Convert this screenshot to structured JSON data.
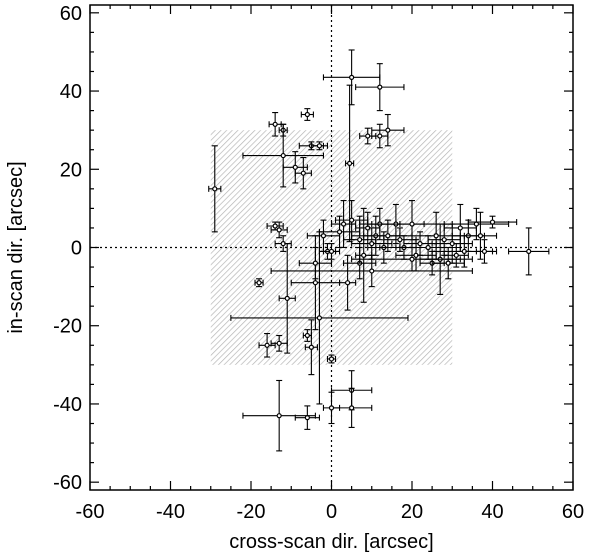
{
  "chart_data": {
    "type": "scatter",
    "title": "",
    "xlabel": "cross-scan dir. [arcsec]",
    "ylabel": "in-scan dir. [arcsec]",
    "xlim": [
      -60,
      60
    ],
    "ylim": [
      -62,
      62
    ],
    "xticks": [
      "-60",
      "-40",
      "-20",
      "0",
      "20",
      "40",
      "60"
    ],
    "yticks": [
      "-60",
      "-40",
      "-20",
      "0",
      "20",
      "40",
      "60"
    ],
    "error_bars": true,
    "reference_lines": [
      "x = 0",
      "y = 0"
    ],
    "shaded_region": {
      "x": [
        -30,
        30
      ],
      "y": [
        -30,
        30
      ]
    },
    "colors": {
      "points": "#000000",
      "shaded_region": "#bbbbbb"
    },
    "points": [
      {
        "x": 5,
        "y": 43.5,
        "xerr": 7,
        "yerr": 7
      },
      {
        "x": 12,
        "y": 41,
        "xerr": 6,
        "yerr": 6
      },
      {
        "x": -14,
        "y": 31.5,
        "xerr": 1.5,
        "yerr": 3
      },
      {
        "x": -6,
        "y": 34,
        "xerr": 1.5,
        "yerr": 1.5
      },
      {
        "x": -12,
        "y": 30,
        "xerr": 1,
        "yerr": 1.5
      },
      {
        "x": 9,
        "y": 28.5,
        "xerr": 2,
        "yerr": 2
      },
      {
        "x": 12,
        "y": 28.5,
        "xerr": 2,
        "yerr": 3
      },
      {
        "x": 14,
        "y": 30,
        "xerr": 4,
        "yerr": 4
      },
      {
        "x": -5,
        "y": 26,
        "xerr": 3,
        "yerr": 1
      },
      {
        "x": -3,
        "y": 26,
        "xerr": 2,
        "yerr": 1
      },
      {
        "x": -12,
        "y": 23.5,
        "xerr": 10,
        "yerr": 8
      },
      {
        "x": -9,
        "y": 20.5,
        "xerr": 3,
        "yerr": 4
      },
      {
        "x": -7,
        "y": 19,
        "xerr": 2,
        "yerr": 4
      },
      {
        "x": 4.5,
        "y": 21.5,
        "xerr": 1,
        "yerr": 20
      },
      {
        "x": -29,
        "y": 15,
        "xerr": 1.5,
        "yerr": 11
      },
      {
        "x": -14,
        "y": 5.5,
        "xerr": 2,
        "yerr": 1
      },
      {
        "x": -13,
        "y": 4.5,
        "xerr": 2,
        "yerr": 2
      },
      {
        "x": -12,
        "y": 1,
        "xerr": 2,
        "yerr": 2
      },
      {
        "x": -18,
        "y": -9,
        "xerr": 1,
        "yerr": 1
      },
      {
        "x": -11,
        "y": -13,
        "xerr": 2,
        "yerr": 14
      },
      {
        "x": -16,
        "y": -25,
        "xerr": 2,
        "yerr": 3
      },
      {
        "x": -13,
        "y": -24.5,
        "xerr": 2,
        "yerr": 2
      },
      {
        "x": -6,
        "y": -22.5,
        "xerr": 1,
        "yerr": 1.5
      },
      {
        "x": -5,
        "y": -25.5,
        "xerr": 1.5,
        "yerr": 7
      },
      {
        "x": -6,
        "y": -43.5,
        "xerr": 3,
        "yerr": 3
      },
      {
        "x": -13,
        "y": -43,
        "xerr": 9,
        "yerr": 9
      },
      {
        "x": 5,
        "y": -36.5,
        "xerr": 5,
        "yerr": 5
      },
      {
        "x": 5,
        "y": -41,
        "xerr": 5,
        "yerr": 5
      },
      {
        "x": 0,
        "y": -41,
        "xerr": 2,
        "yerr": 4
      },
      {
        "x": 0,
        "y": -28.5,
        "xerr": 1,
        "yerr": 1
      },
      {
        "x": -3,
        "y": -18,
        "xerr": 22,
        "yerr": 22
      },
      {
        "x": -4,
        "y": -9,
        "xerr": 6,
        "yerr": 12
      },
      {
        "x": 4,
        "y": -9,
        "xerr": 2,
        "yerr": 7
      },
      {
        "x": 7,
        "y": -4,
        "xerr": 4,
        "yerr": 4
      },
      {
        "x": -4,
        "y": -4,
        "xerr": 4,
        "yerr": 4
      },
      {
        "x": -1,
        "y": -1,
        "xerr": 2,
        "yerr": 2
      },
      {
        "x": 0,
        "y": -1,
        "xerr": 2,
        "yerr": 2
      },
      {
        "x": -2,
        "y": 3,
        "xerr": 4,
        "yerr": 4
      },
      {
        "x": 2,
        "y": 4,
        "xerr": 5,
        "yerr": 4
      },
      {
        "x": 3,
        "y": 6,
        "xerr": 3,
        "yerr": 6
      },
      {
        "x": 5,
        "y": 7,
        "xerr": 4,
        "yerr": 5
      },
      {
        "x": 7,
        "y": 2,
        "xerr": 4,
        "yerr": 6
      },
      {
        "x": 8,
        "y": -2,
        "xerr": 2,
        "yerr": 12
      },
      {
        "x": 9,
        "y": 5,
        "xerr": 3,
        "yerr": 4
      },
      {
        "x": 10,
        "y": 1,
        "xerr": 5,
        "yerr": 4
      },
      {
        "x": 11,
        "y": 3,
        "xerr": 6,
        "yerr": 5
      },
      {
        "x": 12,
        "y": 6,
        "xerr": 5,
        "yerr": 4
      },
      {
        "x": 13,
        "y": 0,
        "xerr": 4,
        "yerr": 4
      },
      {
        "x": 14,
        "y": 3,
        "xerr": 6,
        "yerr": 4
      },
      {
        "x": 16,
        "y": 6,
        "xerr": 7,
        "yerr": 5
      },
      {
        "x": 17,
        "y": 2,
        "xerr": 4,
        "yerr": 3
      },
      {
        "x": 18,
        "y": 0,
        "xerr": 6,
        "yerr": 3
      },
      {
        "x": 20,
        "y": 6,
        "xerr": 10,
        "yerr": 6
      },
      {
        "x": 21,
        "y": -2,
        "xerr": 5,
        "yerr": 4
      },
      {
        "x": 22,
        "y": 1,
        "xerr": 4,
        "yerr": 3
      },
      {
        "x": 24,
        "y": 0,
        "xerr": 8,
        "yerr": 3
      },
      {
        "x": 25,
        "y": -4,
        "xerr": 3,
        "yerr": 3
      },
      {
        "x": 26,
        "y": 3,
        "xerr": 6,
        "yerr": 6
      },
      {
        "x": 27,
        "y": -3,
        "xerr": 5,
        "yerr": 9
      },
      {
        "x": 28,
        "y": 2,
        "xerr": 4,
        "yerr": 4
      },
      {
        "x": 29,
        "y": -4,
        "xerr": 4,
        "yerr": 4
      },
      {
        "x": 30,
        "y": 1,
        "xerr": 5,
        "yerr": 5
      },
      {
        "x": 31,
        "y": -2,
        "xerr": 3,
        "yerr": 3
      },
      {
        "x": 32,
        "y": 5,
        "xerr": 4,
        "yerr": 6
      },
      {
        "x": 33,
        "y": -1,
        "xerr": 8,
        "yerr": 4
      },
      {
        "x": 34,
        "y": 3,
        "xerr": 4,
        "yerr": 4
      },
      {
        "x": 36,
        "y": 6,
        "xerr": 8,
        "yerr": 4
      },
      {
        "x": 37,
        "y": 3,
        "xerr": 4,
        "yerr": 6
      },
      {
        "x": 38,
        "y": -1,
        "xerr": 2,
        "yerr": 3
      },
      {
        "x": 40,
        "y": 6.5,
        "xerr": 6,
        "yerr": 1.5
      },
      {
        "x": 49,
        "y": -1,
        "xerr": 5,
        "yerr": 6
      },
      {
        "x": 20,
        "y": -3,
        "xerr": 15,
        "yerr": 3
      },
      {
        "x": 10,
        "y": -6,
        "xerr": 25,
        "yerr": 4
      }
    ]
  }
}
